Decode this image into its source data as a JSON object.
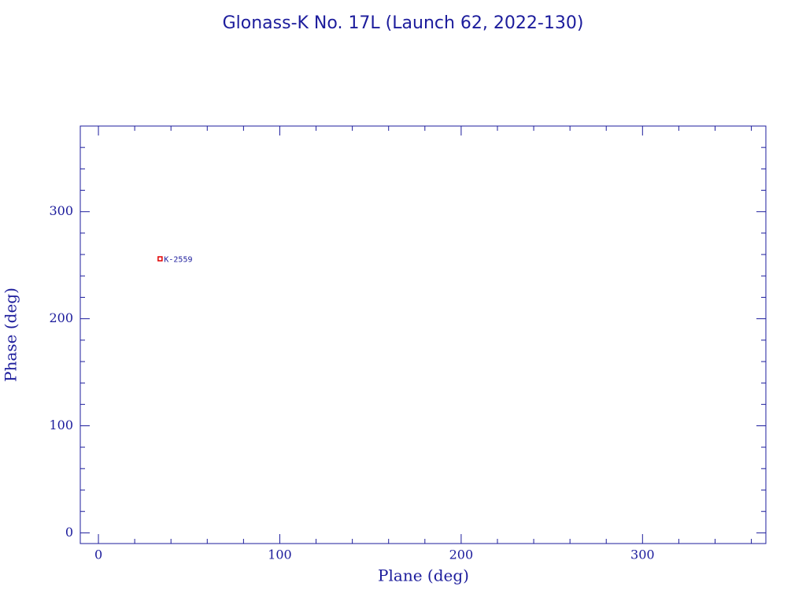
{
  "chart_data": {
    "type": "scatter",
    "title": "Glonass-K No. 17L (Launch 62, 2022-130)",
    "x_label": "Plane (deg)",
    "y_label": "Phase (deg)",
    "series": [
      {
        "name": "K-2559",
        "color": "#e00000",
        "x": [
          34
        ],
        "values": [
          256
        ]
      }
    ],
    "xlim": [
      -10,
      368
    ],
    "ylim": [
      -10,
      380
    ],
    "xticks": [
      0,
      100,
      200,
      300
    ],
    "yticks": [
      0,
      100,
      200,
      300
    ],
    "xminorticks": [
      20,
      40,
      60,
      80,
      120,
      140,
      160,
      180,
      220,
      240,
      260,
      280,
      320,
      340,
      360
    ],
    "yminorticks": [
      20,
      40,
      60,
      80,
      120,
      140,
      160,
      180,
      220,
      240,
      260,
      280,
      320,
      340,
      360
    ],
    "axis_color": "#1c1c9c"
  }
}
